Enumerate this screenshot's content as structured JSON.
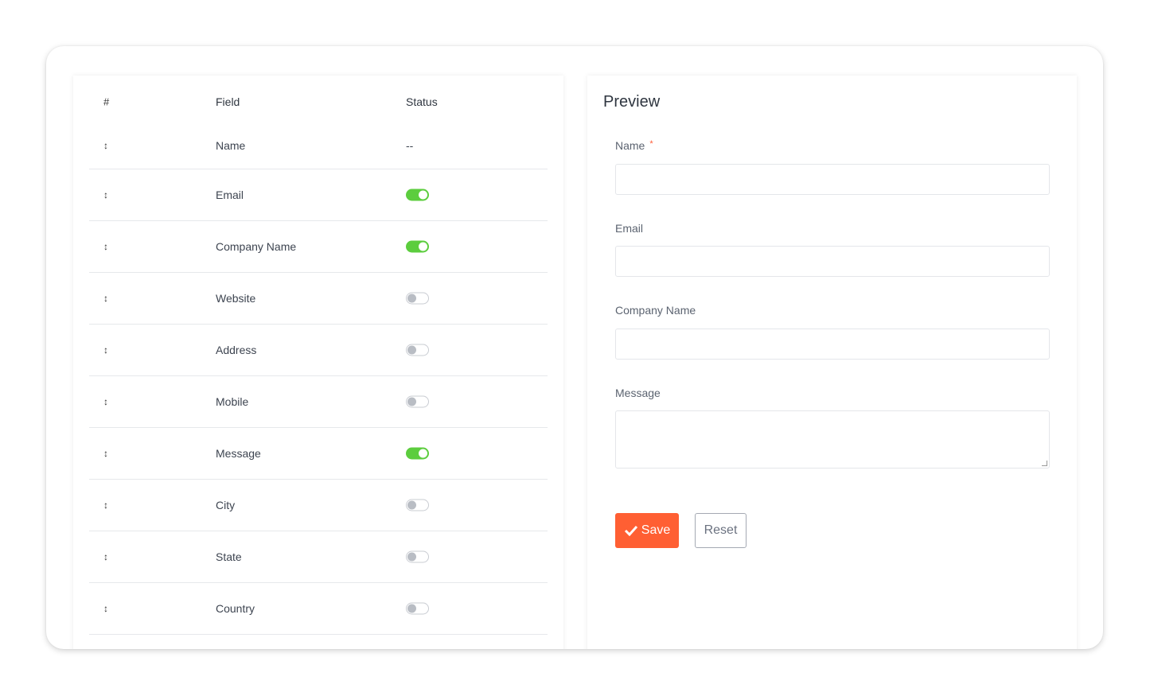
{
  "table": {
    "headers": {
      "hash": "#",
      "field": "Field",
      "status": "Status"
    },
    "drag_icon": "↕",
    "rows": [
      {
        "field": "Name",
        "status_text": "--",
        "enabled": null
      },
      {
        "field": "Email",
        "enabled": true
      },
      {
        "field": "Company Name",
        "enabled": true
      },
      {
        "field": "Website",
        "enabled": false
      },
      {
        "field": "Address",
        "enabled": false
      },
      {
        "field": "Mobile",
        "enabled": false
      },
      {
        "field": "Message",
        "enabled": true
      },
      {
        "field": "City",
        "enabled": false
      },
      {
        "field": "State",
        "enabled": false
      },
      {
        "field": "Country",
        "enabled": false
      }
    ]
  },
  "preview": {
    "title": "Preview",
    "fields": [
      {
        "label": "Name",
        "required": "*",
        "value": ""
      },
      {
        "label": "Email",
        "value": ""
      },
      {
        "label": "Company Name",
        "value": ""
      },
      {
        "label": "Message",
        "value": ""
      }
    ],
    "save_label": "Save",
    "reset_label": "Reset"
  },
  "colors": {
    "accent": "#ff5f33",
    "toggle_on": "#5ccd3e",
    "toggle_off": "#b9bdc4"
  }
}
